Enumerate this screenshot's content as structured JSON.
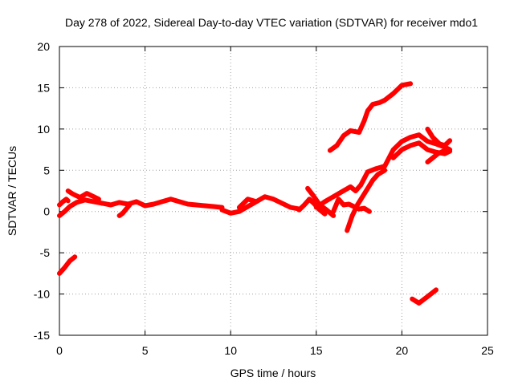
{
  "chart_data": {
    "type": "line",
    "title": "Day 278 of 2022, Sidereal Day-to-day VTEC variation (SDTVAR) for receiver mdo1",
    "xlabel": "GPS time / hours",
    "ylabel": "SDTVAR / TECUs",
    "xlim": [
      0,
      25
    ],
    "ylim": [
      -15,
      20
    ],
    "xticks": [
      0,
      5,
      10,
      15,
      20,
      25
    ],
    "yticks": [
      -15,
      -10,
      -5,
      0,
      5,
      10,
      15,
      20
    ],
    "grid": true,
    "line_color": "#ff0000",
    "series": [
      {
        "x": [
          0,
          0.3,
          0.6,
          0.9
        ],
        "y": [
          -7.5,
          -6.8,
          -6.0,
          -5.5
        ]
      },
      {
        "x": [
          0,
          0.2,
          0.4,
          0.5
        ],
        "y": [
          0.8,
          1.2,
          1.5,
          1.3
        ]
      },
      {
        "x": [
          0,
          0.3,
          0.6,
          1.0,
          1.5,
          2.0,
          2.5
        ],
        "y": [
          -0.5,
          0.0,
          0.6,
          1.1,
          1.4,
          1.2,
          1.0
        ]
      },
      {
        "x": [
          0.5,
          0.8,
          1.2,
          1.6,
          2.0,
          2.3
        ],
        "y": [
          2.5,
          2.1,
          1.7,
          2.2,
          1.8,
          1.5
        ]
      },
      {
        "x": [
          2.5,
          3.0,
          3.5,
          4.0,
          4.5,
          5.0,
          5.5,
          6.0,
          6.5,
          7.0,
          7.5,
          8.0,
          8.5,
          9.0,
          9.5
        ],
        "y": [
          1.0,
          0.8,
          1.1,
          0.9,
          1.2,
          0.7,
          0.9,
          1.2,
          1.5,
          1.2,
          0.9,
          0.8,
          0.7,
          0.6,
          0.5
        ]
      },
      {
        "x": [
          3.5,
          3.7,
          3.9,
          4.1
        ],
        "y": [
          -0.5,
          -0.2,
          0.3,
          0.8
        ]
      },
      {
        "x": [
          9.5,
          10.0,
          10.5,
          11.0,
          11.5,
          12.0,
          12.5,
          13.0,
          13.5,
          14.0
        ],
        "y": [
          0.2,
          -0.2,
          0.0,
          0.6,
          1.2,
          1.8,
          1.5,
          1.0,
          0.5,
          0.3
        ]
      },
      {
        "x": [
          10.5,
          11.0,
          11.5
        ],
        "y": [
          0.5,
          1.5,
          1.2
        ]
      },
      {
        "x": [
          14.0,
          14.3,
          14.6,
          14.9,
          15.2,
          15.5
        ],
        "y": [
          0.2,
          0.8,
          1.5,
          0.9,
          0.2,
          -0.3
        ]
      },
      {
        "x": [
          14.5,
          14.8,
          15.2,
          15.6,
          16.0
        ],
        "y": [
          2.8,
          2.0,
          0.8,
          0.2,
          -0.5
        ]
      },
      {
        "x": [
          15.0,
          15.5,
          16.0,
          16.5,
          17.0,
          17.3,
          17.6,
          18.0,
          18.5,
          19.0,
          19.5,
          20.0,
          20.5,
          21.0,
          21.5,
          22.0,
          22.5,
          22.8
        ],
        "y": [
          0.5,
          1.2,
          1.8,
          2.4,
          3.0,
          2.5,
          3.2,
          4.8,
          5.2,
          5.5,
          7.5,
          8.5,
          9.0,
          9.3,
          8.5,
          8.2,
          7.8,
          7.5
        ]
      },
      {
        "x": [
          16.0,
          16.3,
          16.6,
          16.9,
          17.2,
          17.5,
          17.8,
          18.1
        ],
        "y": [
          0.0,
          1.5,
          0.8,
          0.9,
          0.6,
          0.3,
          0.4,
          0.0
        ]
      },
      {
        "x": [
          16.8,
          17.1,
          17.4,
          17.7,
          18.0,
          18.3,
          18.6,
          19.0
        ],
        "y": [
          -2.3,
          -0.5,
          0.8,
          1.8,
          2.8,
          3.8,
          4.5,
          5.0
        ]
      },
      {
        "x": [
          15.8,
          16.2,
          16.6,
          17.0,
          17.5
        ],
        "y": [
          7.4,
          8.0,
          9.2,
          9.8,
          9.6
        ]
      },
      {
        "x": [
          17.5,
          17.8,
          18.0,
          18.3,
          18.7,
          19.0,
          19.5,
          20.0,
          20.5
        ],
        "y": [
          9.6,
          11.0,
          12.2,
          13.0,
          13.2,
          13.5,
          14.3,
          15.3,
          15.5
        ]
      },
      {
        "x": [
          19.5,
          20.0,
          20.5,
          21.0,
          21.5,
          22.0,
          22.5,
          22.8
        ],
        "y": [
          6.5,
          7.5,
          8.0,
          8.3,
          7.5,
          7.2,
          7.0,
          7.3
        ]
      },
      {
        "x": [
          21.5,
          21.8,
          22.1,
          22.4,
          22.7
        ],
        "y": [
          6.0,
          6.5,
          7.0,
          7.3,
          7.5
        ]
      },
      {
        "x": [
          21.5,
          21.8,
          22.2,
          22.5,
          22.8
        ],
        "y": [
          10.0,
          9.0,
          8.2,
          8.0,
          8.6
        ]
      },
      {
        "x": [
          20.6,
          21.0,
          21.5,
          22.0
        ],
        "y": [
          -10.6,
          -11.1,
          -10.3,
          -9.5
        ]
      }
    ]
  }
}
